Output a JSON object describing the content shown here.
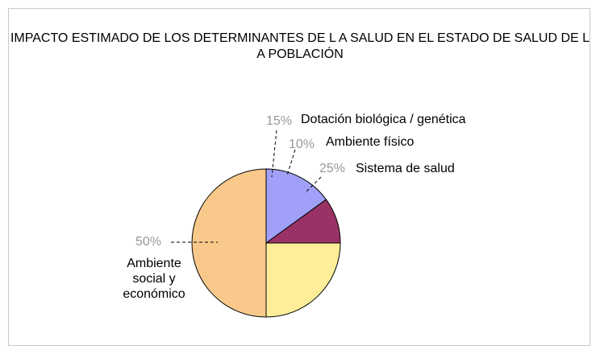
{
  "chart_data": {
    "type": "pie",
    "title": "IMPACTO ESTIMADO DE LOS DETERMINANTES DE L A SALUD EN EL ESTADO DE SALUD DE L A POBLACIÓN",
    "categories": [
      "Dotación biológica / genética",
      "Ambiente físico",
      "Sistema de salud",
      "Ambiente social y económico"
    ],
    "values": [
      15,
      10,
      25,
      50
    ],
    "value_labels": [
      "15%",
      "10%",
      "25%",
      "50%"
    ],
    "colors": [
      "#a0a0f8",
      "#993366",
      "#ffee99",
      "#f9c98b"
    ]
  }
}
